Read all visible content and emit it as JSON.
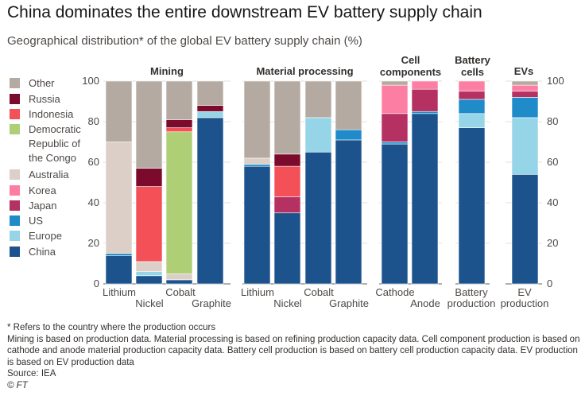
{
  "title": "China dominates the entire downstream EV battery supply chain",
  "subtitle": "Geographical distribution* of the global EV battery supply chain (%)",
  "colors": {
    "Other": "#b5aaa1",
    "Russia": "#7c0a2c",
    "Indonesia": "#f35058",
    "Democratic Republic of the Congo": "#afcf76",
    "Australia": "#dbcfc8",
    "Korea": "#fc7ea3",
    "Japan": "#b43162",
    "US": "#1f8bc9",
    "Europe": "#96d4e7",
    "China": "#1d538d"
  },
  "chart_data": {
    "type": "bar",
    "stacked": true,
    "ylim": [
      0,
      100
    ],
    "yticks": [
      "0",
      "20",
      "40",
      "60",
      "80",
      "100"
    ],
    "legend": {
      "placement": "left",
      "entries": [
        "Other",
        "Russia",
        "Indonesia",
        "Democratic Republic of the Congo",
        "Australia",
        "Korea",
        "Japan",
        "US",
        "Europe",
        "China"
      ]
    },
    "groups": [
      {
        "name": "Mining",
        "bars": [
          {
            "label": "Lithium",
            "segments": [
              {
                "series": "China",
                "value": 14
              },
              {
                "series": "US",
                "value": 1
              },
              {
                "series": "Australia",
                "value": 55
              },
              {
                "series": "Other",
                "value": 30
              }
            ]
          },
          {
            "label": "Nickel",
            "segments": [
              {
                "series": "China",
                "value": 4
              },
              {
                "series": "Europe",
                "value": 2
              },
              {
                "series": "Australia",
                "value": 5
              },
              {
                "series": "Indonesia",
                "value": 37
              },
              {
                "series": "Russia",
                "value": 9
              },
              {
                "series": "Other",
                "value": 43
              }
            ]
          },
          {
            "label": "Cobalt",
            "segments": [
              {
                "series": "China",
                "value": 2
              },
              {
                "series": "Australia",
                "value": 3
              },
              {
                "series": "Democratic Republic of the Congo",
                "value": 70
              },
              {
                "series": "Indonesia",
                "value": 2
              },
              {
                "series": "Russia",
                "value": 4
              },
              {
                "series": "Other",
                "value": 19
              }
            ]
          },
          {
            "label": "Graphite",
            "segments": [
              {
                "series": "China",
                "value": 82
              },
              {
                "series": "Europe",
                "value": 3
              },
              {
                "series": "Russia",
                "value": 3
              },
              {
                "series": "Other",
                "value": 12
              }
            ]
          }
        ]
      },
      {
        "name": "Material processing",
        "bars": [
          {
            "label": "Lithium",
            "segments": [
              {
                "series": "China",
                "value": 58
              },
              {
                "series": "US",
                "value": 1
              },
              {
                "series": "Australia",
                "value": 3
              },
              {
                "series": "Other",
                "value": 38
              }
            ]
          },
          {
            "label": "Nickel",
            "segments": [
              {
                "series": "China",
                "value": 35
              },
              {
                "series": "Japan",
                "value": 8
              },
              {
                "series": "Indonesia",
                "value": 15
              },
              {
                "series": "Russia",
                "value": 6
              },
              {
                "series": "Other",
                "value": 36
              }
            ]
          },
          {
            "label": "Cobalt",
            "segments": [
              {
                "series": "China",
                "value": 65
              },
              {
                "series": "Europe",
                "value": 17
              },
              {
                "series": "Other",
                "value": 18
              }
            ]
          },
          {
            "label": "Graphite",
            "segments": [
              {
                "series": "China",
                "value": 71
              },
              {
                "series": "US",
                "value": 5
              },
              {
                "series": "Other",
                "value": 24
              }
            ]
          }
        ]
      },
      {
        "name": "Cell components",
        "bars": [
          {
            "label": "Cathode",
            "segments": [
              {
                "series": "China",
                "value": 69
              },
              {
                "series": "US",
                "value": 1
              },
              {
                "series": "Japan",
                "value": 14
              },
              {
                "series": "Korea",
                "value": 14
              },
              {
                "series": "Other",
                "value": 2
              }
            ]
          },
          {
            "label": "Anode",
            "segments": [
              {
                "series": "China",
                "value": 84
              },
              {
                "series": "US",
                "value": 1
              },
              {
                "series": "Japan",
                "value": 11
              },
              {
                "series": "Korea",
                "value": 4
              }
            ]
          }
        ]
      },
      {
        "name": "Battery cells",
        "bars": [
          {
            "label": "Battery production",
            "segments": [
              {
                "series": "China",
                "value": 77
              },
              {
                "series": "Europe",
                "value": 7
              },
              {
                "series": "US",
                "value": 7
              },
              {
                "series": "Japan",
                "value": 4
              },
              {
                "series": "Korea",
                "value": 5
              }
            ]
          }
        ]
      },
      {
        "name": "EVs",
        "bars": [
          {
            "label": "EV production",
            "segments": [
              {
                "series": "China",
                "value": 54
              },
              {
                "series": "Europe",
                "value": 28
              },
              {
                "series": "US",
                "value": 10
              },
              {
                "series": "Japan",
                "value": 3
              },
              {
                "series": "Korea",
                "value": 3
              },
              {
                "series": "Other",
                "value": 2
              }
            ]
          }
        ]
      }
    ]
  },
  "notes": [
    "* Refers to the country where the production occurs",
    "Mining is based on production data. Material processing is based on refining production capacity data. Cell component production is based on cathode and anode material production capacity data. Battery cell production is based on battery cell production capacity data. EV production is based on EV production data",
    "Source: IEA"
  ],
  "credit": "© FT"
}
